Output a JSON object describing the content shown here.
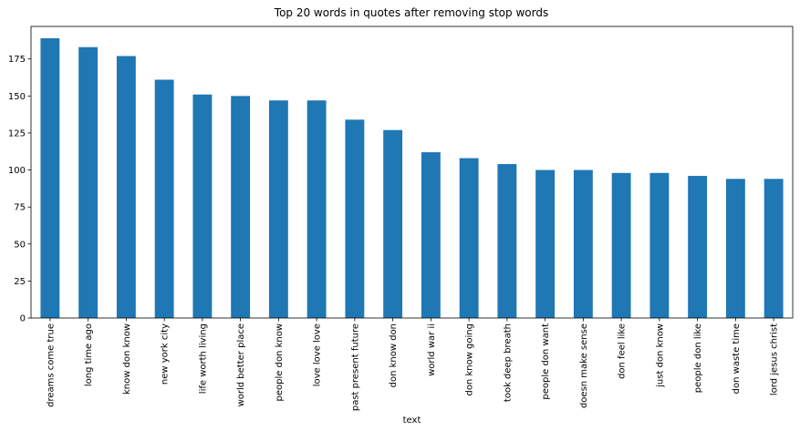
{
  "chart_data": {
    "type": "bar",
    "title": "Top 20 words in quotes after removing stop words",
    "xlabel": "text",
    "ylabel": "",
    "ylim": [
      0,
      197
    ],
    "yticks": [
      0,
      25,
      50,
      75,
      100,
      125,
      150,
      175
    ],
    "grid": false,
    "bar_color": "#1f77b4",
    "categories": [
      "dreams come true",
      "long time ago",
      "know don know",
      "new york city",
      "life worth living",
      "world better place",
      "people don know",
      "love love love",
      "past present future",
      "don know don",
      "world war ii",
      "don know going",
      "took deep breath",
      "people don want",
      "doesn make sense",
      "don feel like",
      "just don know",
      "people don like",
      "don waste time",
      "lord jesus christ"
    ],
    "values": [
      189,
      183,
      177,
      161,
      151,
      150,
      147,
      147,
      134,
      127,
      112,
      108,
      104,
      100,
      100,
      98,
      98,
      96,
      94,
      94
    ]
  }
}
